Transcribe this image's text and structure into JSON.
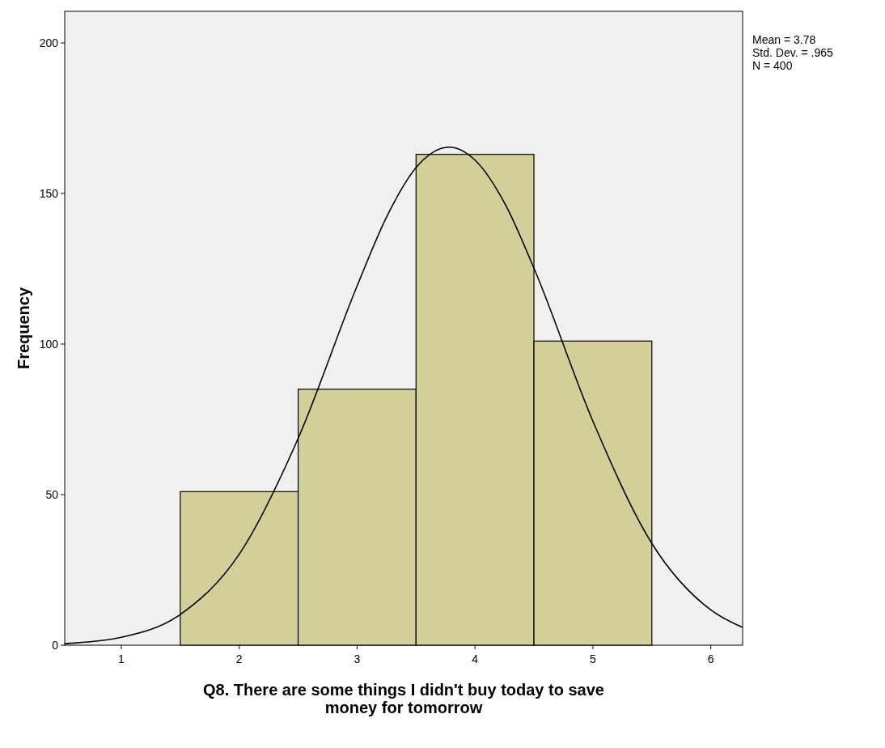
{
  "chart_data": {
    "type": "histogram",
    "xlabel": "Q8. There are some things I didn't buy today to save money for tomorrow",
    "ylabel": "Frequency",
    "bins": [
      1.5,
      2.5,
      3.5,
      4.5,
      5.5
    ],
    "values": [
      51,
      85,
      163,
      101
    ],
    "color": "#d3cf99",
    "series": [
      {
        "type": "line",
        "color": "#000000",
        "x": [
          0.52,
          1,
          1.5,
          2,
          2.5,
          3,
          3.25,
          3.5,
          3.78,
          4,
          4.25,
          4.5,
          5,
          5.5,
          6,
          6.27
        ],
        "values": [
          0.5,
          2.6,
          10.2,
          30.2,
          68.7,
          119.3,
          142.2,
          158.6,
          165.4,
          161.1,
          146.9,
          125.2,
          74.4,
          33.8,
          11.7,
          5.9
        ]
      }
    ],
    "xlim": [
      0.52,
      6.27
    ],
    "ylim": [
      0,
      210.5
    ],
    "xticks": [
      1,
      2,
      3,
      4,
      5,
      6
    ],
    "yticks": [
      0,
      50,
      100,
      150,
      200
    ],
    "annotations": [
      "Mean = 3.78",
      "Std. Dev. = .965",
      "N = 400"
    ],
    "grid": false
  }
}
